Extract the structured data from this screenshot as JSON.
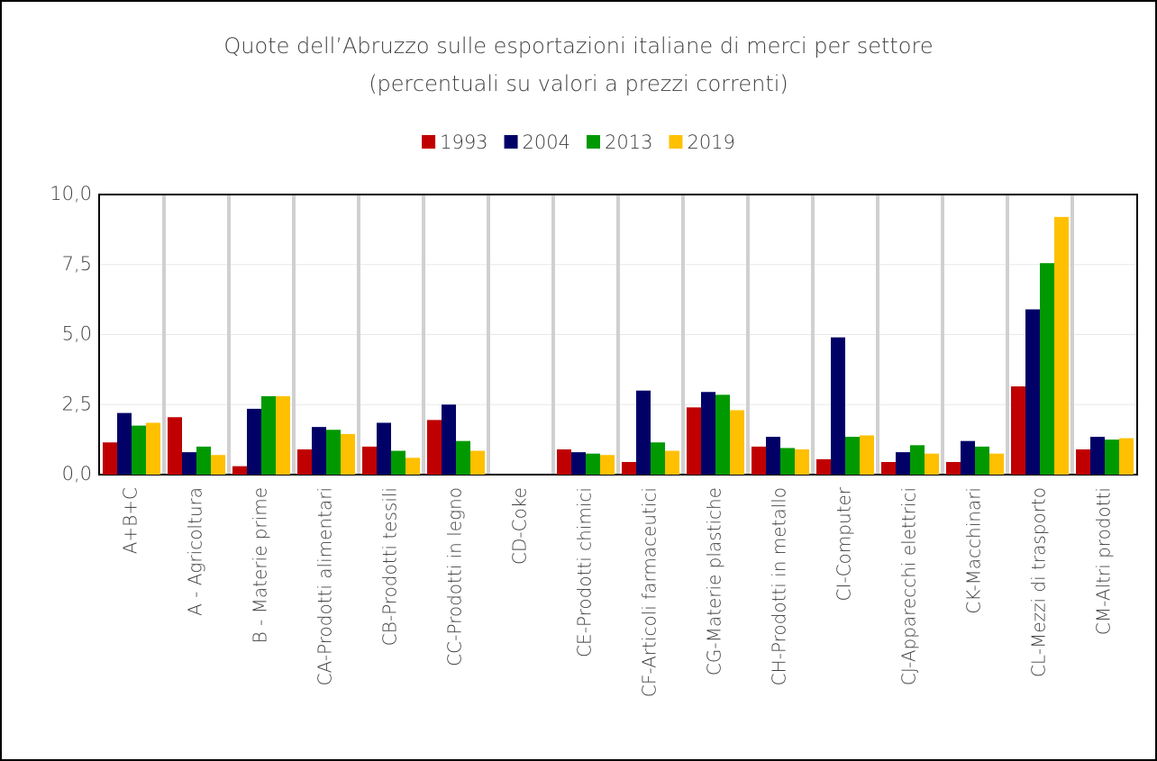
{
  "chart_data": {
    "type": "bar",
    "title": "Quote dell’Abruzzo sulle esportazioni italiane di merci per settore",
    "subtitle": "(percentuali su valori a prezzi correnti)",
    "categories": [
      "A+B+C",
      "A - Agricoltura",
      "B - Materie prime",
      "CA-Prodotti alimentari",
      "CB-Prodotti tessili",
      "CC-Prodotti in legno",
      "CD-Coke",
      "CE-Prodotti chimici",
      "CF-Articoli farmaceutici",
      "CG-Materie plastiche",
      "CH-Prodotti in metallo",
      "CI-Computer",
      "CJ-Apparecchi elettrici",
      "CK-Macchinari",
      "CL-Mezzi di trasporto",
      "CM-Altri prodotti"
    ],
    "series": [
      {
        "name": "1993",
        "color": "#c00000",
        "values": [
          1.15,
          2.05,
          0.3,
          0.9,
          1.0,
          1.95,
          0,
          0.9,
          0.45,
          2.4,
          1.0,
          0.55,
          0.45,
          0.45,
          3.15,
          0.9
        ]
      },
      {
        "name": "2004",
        "color": "#000066",
        "values": [
          2.2,
          0.8,
          2.35,
          1.7,
          1.85,
          2.5,
          0,
          0.8,
          3.0,
          2.95,
          1.35,
          4.9,
          0.8,
          1.2,
          5.9,
          1.35
        ]
      },
      {
        "name": "2013",
        "color": "#009900",
        "values": [
          1.75,
          1.0,
          2.8,
          1.6,
          0.85,
          1.2,
          0,
          0.75,
          1.15,
          2.85,
          0.95,
          1.35,
          1.05,
          1.0,
          7.55,
          1.25
        ]
      },
      {
        "name": "2019",
        "color": "#ffc000",
        "values": [
          1.85,
          0.7,
          2.8,
          1.45,
          0.6,
          0.85,
          0,
          0.7,
          0.85,
          2.3,
          0.9,
          1.4,
          0.75,
          0.75,
          9.2,
          1.3
        ]
      }
    ],
    "ylim": [
      0,
      10
    ],
    "yticks": [
      {
        "value": 0,
        "label": "0,0"
      },
      {
        "value": 2.5,
        "label": "2,5"
      },
      {
        "value": 5,
        "label": "5,0"
      },
      {
        "value": 7.5,
        "label": "7,5"
      },
      {
        "value": 10,
        "label": "10,0"
      }
    ],
    "grid": true,
    "legend": "top"
  }
}
